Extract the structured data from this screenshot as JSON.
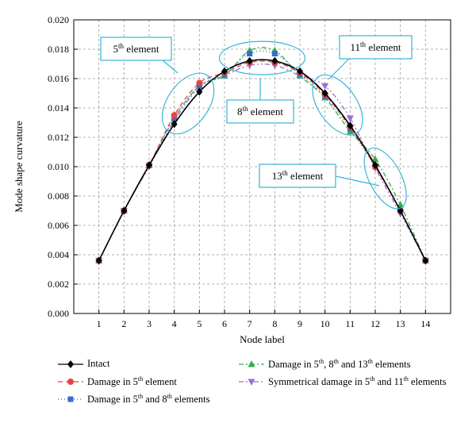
{
  "chart_data": {
    "type": "line",
    "xlabel": "Node label",
    "ylabel": "Mode shape curvature",
    "x": [
      1,
      2,
      3,
      4,
      5,
      6,
      7,
      8,
      9,
      10,
      11,
      12,
      13,
      14
    ],
    "xlim": [
      0,
      15
    ],
    "ylim": [
      0.0,
      0.02
    ],
    "yticks": [
      "0.000",
      "0.002",
      "0.004",
      "0.006",
      "0.008",
      "0.010",
      "0.012",
      "0.014",
      "0.016",
      "0.018",
      "0.020"
    ],
    "grid": true,
    "legend_position": "bottom",
    "series": [
      {
        "name": "Intact",
        "color": "#000000",
        "marker": "diamond",
        "dash": "solid",
        "values": [
          0.0036,
          0.007,
          0.0101,
          0.0129,
          0.0151,
          0.0165,
          0.0172,
          0.0172,
          0.0165,
          0.015,
          0.0128,
          0.0101,
          0.007,
          0.0036
        ]
      },
      {
        "name": "Damage in 5th element",
        "color": "#e8453c",
        "marker": "circle",
        "dash": "6,4",
        "values": [
          0.0036,
          0.007,
          0.0101,
          0.0135,
          0.0157,
          0.0164,
          0.0171,
          0.0171,
          0.0164,
          0.0149,
          0.0127,
          0.01,
          0.007,
          0.0036
        ]
      },
      {
        "name": "Damage in 5th and 8th elements",
        "color": "#2f6fd0",
        "marker": "square",
        "dash": "1,3",
        "values": [
          0.0036,
          0.007,
          0.0101,
          0.0133,
          0.0155,
          0.0163,
          0.0177,
          0.0177,
          0.0163,
          0.0148,
          0.0126,
          0.01,
          0.007,
          0.0036
        ]
      },
      {
        "name": "Damage in 5th, 8th and 13th elements",
        "color": "#3aaa4a",
        "marker": "triangle-up",
        "dash": "6,3,2,3",
        "values": [
          0.0036,
          0.007,
          0.0101,
          0.0133,
          0.0155,
          0.0162,
          0.0179,
          0.0179,
          0.0162,
          0.0147,
          0.0124,
          0.0105,
          0.0074,
          0.0036
        ]
      },
      {
        "name": "Symmetrical damage in 5th and 11th elements",
        "color": "#9b6fd4",
        "marker": "triangle-down",
        "dash": "6,3,2,3,2,3",
        "values": [
          0.0036,
          0.007,
          0.01,
          0.0131,
          0.0154,
          0.0162,
          0.0169,
          0.0169,
          0.0162,
          0.0155,
          0.0133,
          0.0099,
          0.0068,
          0.0036
        ]
      }
    ],
    "annotations": [
      {
        "base": "5",
        "sup": "th",
        "rest": " element",
        "target_x": 4.5,
        "target_y": 0.0146
      },
      {
        "base": "8",
        "sup": "th",
        "rest": " element",
        "target_x": 7.5,
        "target_y": 0.0174
      },
      {
        "base": "11",
        "sup": "th",
        "rest": " element",
        "target_x": 10.5,
        "target_y": 0.0142
      },
      {
        "base": "13",
        "sup": "th",
        "rest": " element",
        "target_x": 12.4,
        "target_y": 0.0093
      }
    ]
  },
  "legend": {
    "items": [
      {
        "base": "Intact",
        "parts": []
      },
      {
        "base": "Damage in 5",
        "parts": [
          {
            "sup": "th"
          },
          {
            "text": " element"
          }
        ]
      },
      {
        "base": "Damage in 5",
        "parts": [
          {
            "sup": "th"
          },
          {
            "text": " and 8"
          },
          {
            "sup": "th"
          },
          {
            "text": " elements"
          }
        ]
      },
      {
        "base": "Damage in 5",
        "parts": [
          {
            "sup": "th"
          },
          {
            "text": ", 8"
          },
          {
            "sup": "th"
          },
          {
            "text": " and 13"
          },
          {
            "sup": "th"
          },
          {
            "text": " elements"
          }
        ]
      },
      {
        "base": "Symmetrical damage in 5",
        "parts": [
          {
            "sup": "th"
          },
          {
            "text": " and 11"
          },
          {
            "sup": "th"
          },
          {
            "text": " elements"
          }
        ]
      }
    ]
  }
}
